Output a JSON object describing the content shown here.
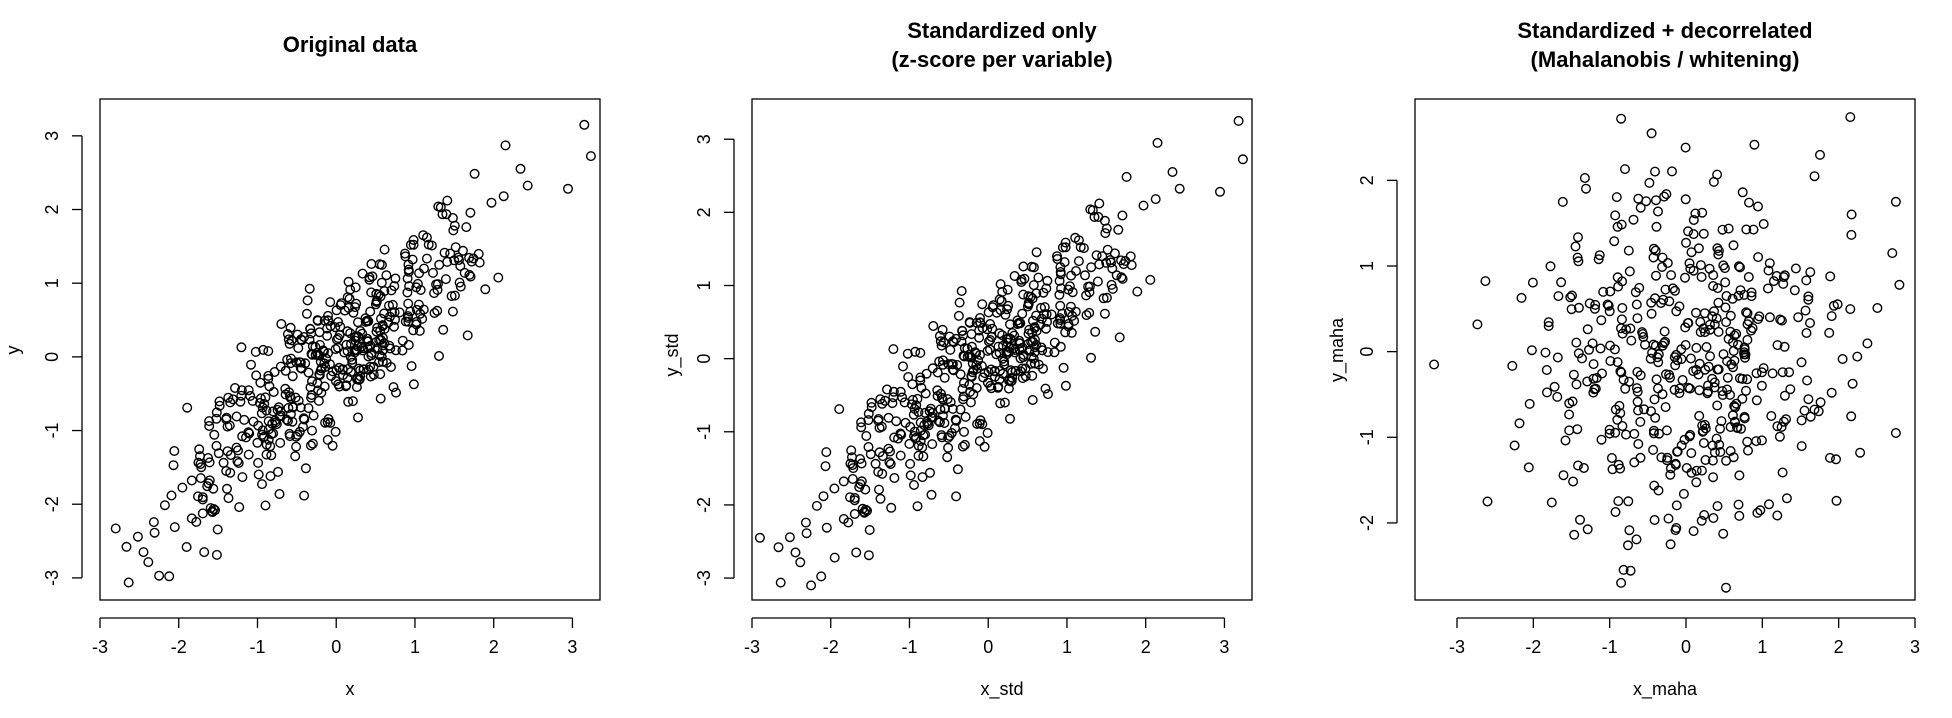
{
  "chart_data": [
    {
      "type": "scatter",
      "title": "Original data",
      "xlabel": "x",
      "ylabel": "y",
      "xlim": [
        -3.0,
        3.35
      ],
      "ylim": [
        -3.3,
        3.5
      ],
      "xticks": [
        -3,
        -2,
        -1,
        0,
        1,
        2,
        3
      ],
      "yticks": [
        -3,
        -2,
        -1,
        0,
        1,
        2,
        3
      ],
      "grid": false,
      "legend": "none",
      "n_points": 500,
      "correlation": 0.85,
      "seed": 101,
      "extreme_points": [
        [
          3.15,
          3.15
        ],
        [
          -2.8,
          -2.33
        ],
        [
          -2.25,
          -2.97
        ],
        [
          2.15,
          2.87
        ],
        [
          -1.9,
          -2.58
        ]
      ]
    },
    {
      "type": "scatter",
      "title": "Standardized only\n(z-score per variable)",
      "title_lines": [
        "Standardized only",
        "(z-score per variable)"
      ],
      "xlabel": "x_std",
      "ylabel": "y_std",
      "xlim": [
        -3.0,
        3.35
      ],
      "ylim": [
        -3.3,
        3.55
      ],
      "xticks": [
        -3,
        -2,
        -1,
        0,
        1,
        2,
        3
      ],
      "yticks": [
        -3,
        -2,
        -1,
        0,
        1,
        2,
        3
      ],
      "grid": false,
      "legend": "none",
      "n_points": 500,
      "correlation": 0.85,
      "seed": 101,
      "extreme_points": [
        [
          3.18,
          3.25
        ],
        [
          -2.9,
          -2.45
        ],
        [
          -2.25,
          -3.1
        ],
        [
          2.15,
          2.95
        ],
        [
          -1.95,
          -2.72
        ]
      ]
    },
    {
      "type": "scatter",
      "title": "Standardized + decorrelated\n(Mahalanobis / whitening)",
      "title_lines": [
        "Standardized + decorrelated",
        "(Mahalanobis / whitening)"
      ],
      "xlabel": "x_maha",
      "ylabel": "y_maha",
      "xlim": [
        -3.55,
        3.0
      ],
      "ylim": [
        -2.9,
        2.95
      ],
      "xticks": [
        -3,
        -2,
        -1,
        0,
        1,
        2,
        3
      ],
      "yticks": [
        -2,
        -1,
        0,
        1,
        2
      ],
      "grid": false,
      "legend": "none",
      "n_points": 500,
      "correlation": 0.0,
      "seed": 202,
      "extreme_points": [
        [
          -3.3,
          -0.15
        ],
        [
          2.75,
          1.75
        ],
        [
          2.75,
          -0.95
        ],
        [
          -0.85,
          2.72
        ],
        [
          -0.85,
          -2.7
        ],
        [
          -0.45,
          2.55
        ],
        [
          -2.6,
          -1.75
        ]
      ]
    }
  ]
}
